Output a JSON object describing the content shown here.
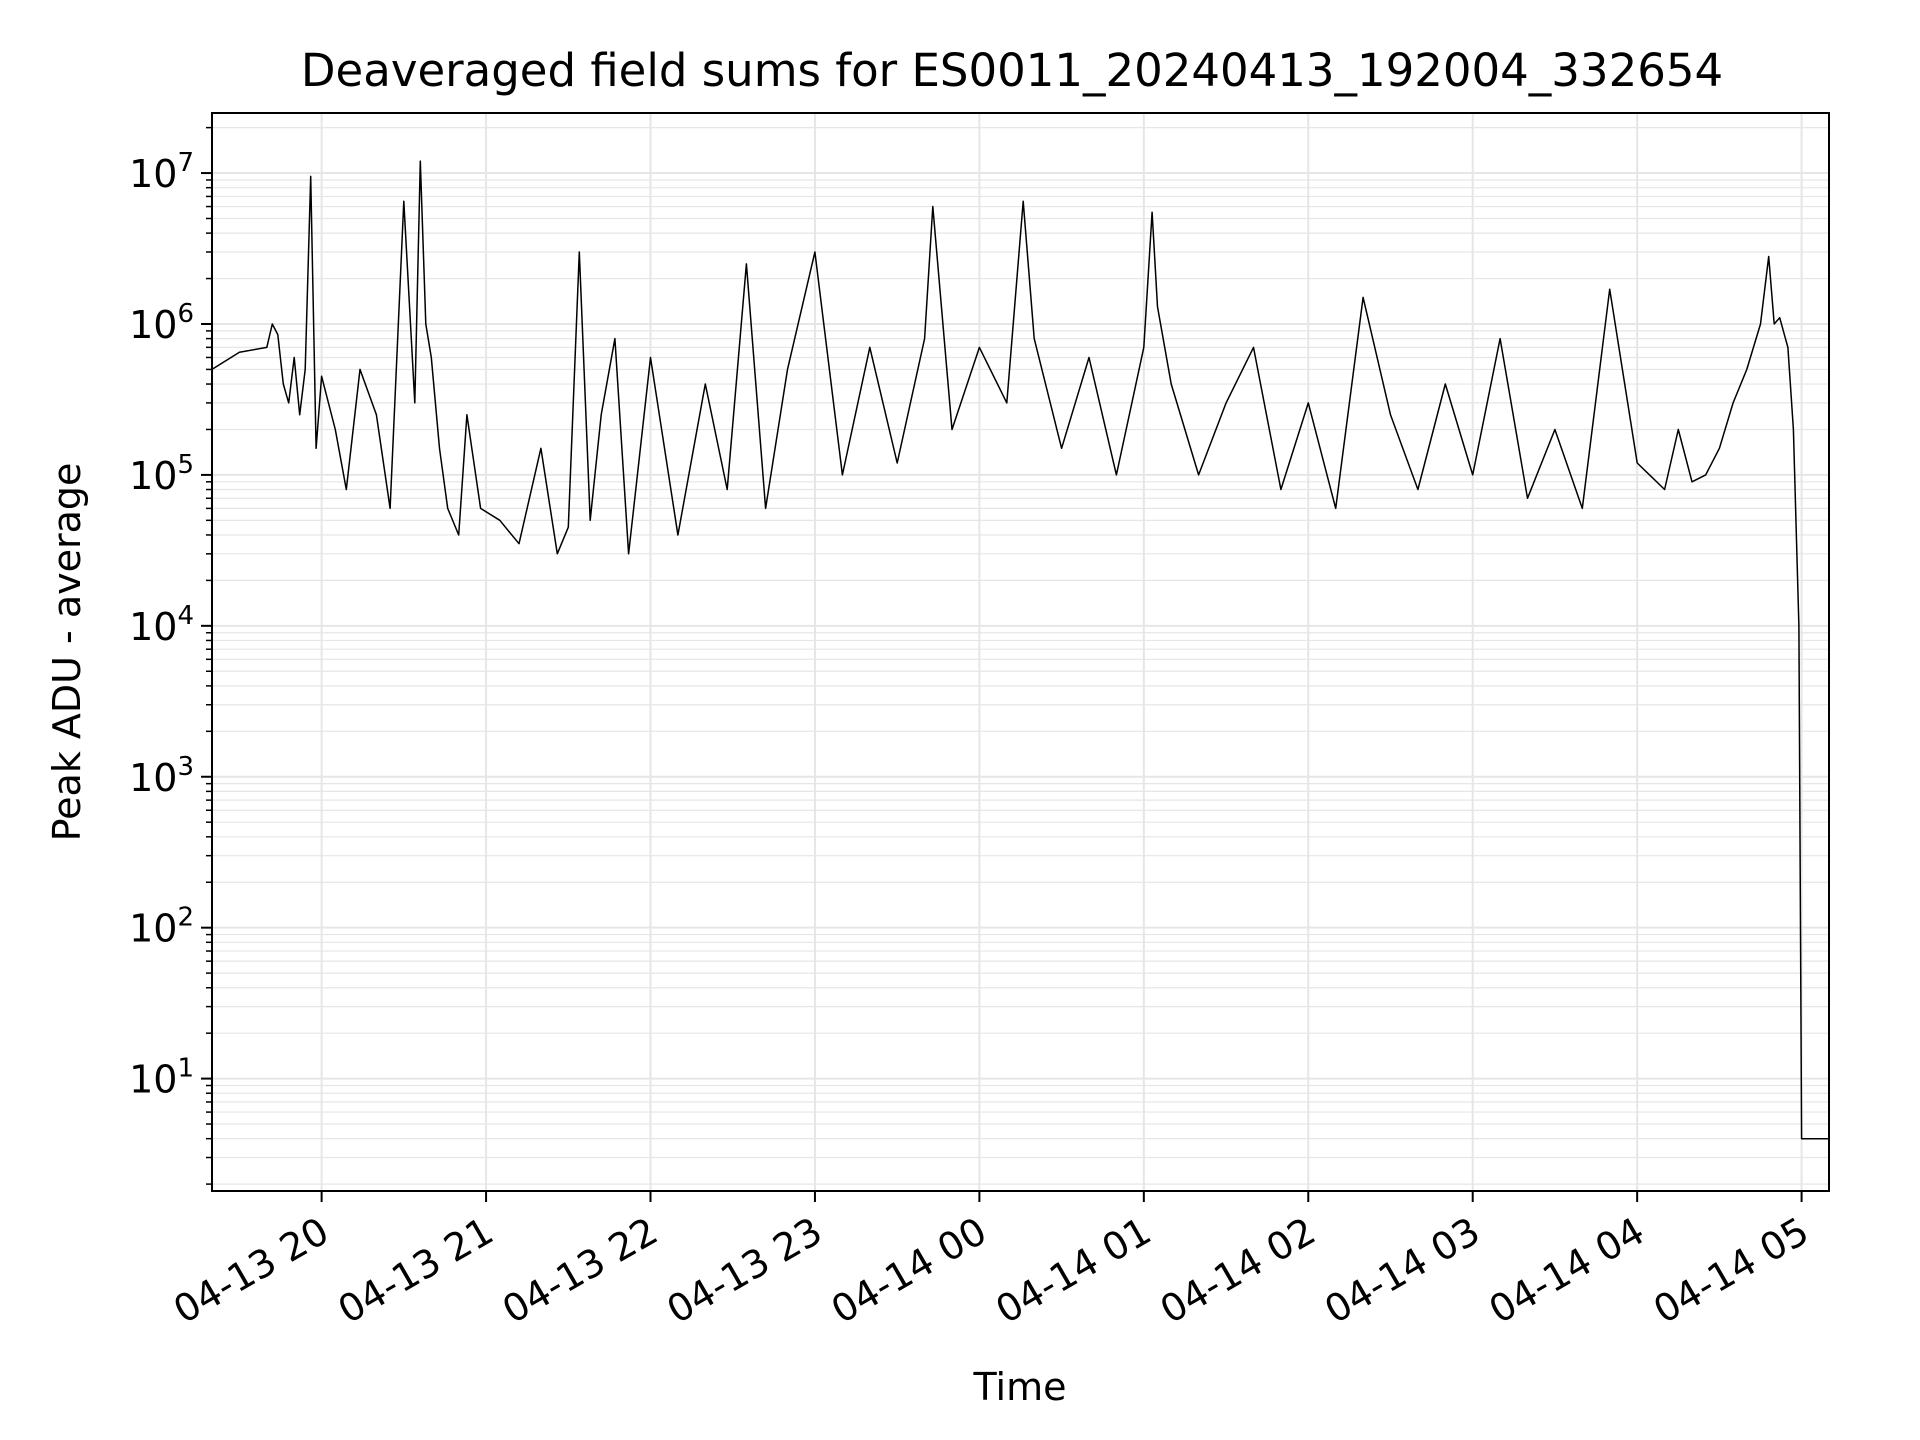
{
  "chart_data": {
    "type": "line",
    "title": "Deaveraged field sums for ES0011_20240413_192004_332654",
    "xlabel": "Time",
    "ylabel": "Peak ADU - average",
    "yscale": "log",
    "ylim": [
      1.8,
      25000000
    ],
    "xlim": [
      "2024-04-13 19:20",
      "2024-04-14 05:10"
    ],
    "grid": true,
    "line_color": "#000000",
    "grid_color": "#e6e6e6",
    "x_ticks": [
      {
        "value": "2024-04-13 20:00",
        "label": "04-13 20"
      },
      {
        "value": "2024-04-13 21:00",
        "label": "04-13 21"
      },
      {
        "value": "2024-04-13 22:00",
        "label": "04-13 22"
      },
      {
        "value": "2024-04-13 23:00",
        "label": "04-13 23"
      },
      {
        "value": "2024-04-14 00:00",
        "label": "04-14 00"
      },
      {
        "value": "2024-04-14 01:00",
        "label": "04-14 01"
      },
      {
        "value": "2024-04-14 02:00",
        "label": "04-14 02"
      },
      {
        "value": "2024-04-14 03:00",
        "label": "04-14 03"
      },
      {
        "value": "2024-04-14 04:00",
        "label": "04-14 04"
      },
      {
        "value": "2024-04-14 05:00",
        "label": "04-14 05"
      }
    ],
    "y_ticks": [
      {
        "value": 10,
        "base": "10",
        "exp": "1"
      },
      {
        "value": 100,
        "base": "10",
        "exp": "2"
      },
      {
        "value": 1000,
        "base": "10",
        "exp": "3"
      },
      {
        "value": 10000,
        "base": "10",
        "exp": "4"
      },
      {
        "value": 100000,
        "base": "10",
        "exp": "5"
      },
      {
        "value": 1000000,
        "base": "10",
        "exp": "6"
      },
      {
        "value": 10000000,
        "base": "10",
        "exp": "7"
      }
    ],
    "series": [
      {
        "x": [
          "2024-04-13 19:20",
          "2024-04-13 19:30",
          "2024-04-13 19:40",
          "2024-04-13 19:42",
          "2024-04-13 19:44",
          "2024-04-13 19:46",
          "2024-04-13 19:48",
          "2024-04-13 19:50",
          "2024-04-13 19:52",
          "2024-04-13 19:54",
          "2024-04-13 19:56",
          "2024-04-13 19:58",
          "2024-04-13 20:00",
          "2024-04-13 20:05",
          "2024-04-13 20:09",
          "2024-04-13 20:14",
          "2024-04-13 20:20",
          "2024-04-13 20:25",
          "2024-04-13 20:30",
          "2024-04-13 20:34",
          "2024-04-13 20:36",
          "2024-04-13 20:38",
          "2024-04-13 20:40",
          "2024-04-13 20:43",
          "2024-04-13 20:46",
          "2024-04-13 20:50",
          "2024-04-13 20:53",
          "2024-04-13 20:58",
          "2024-04-13 21:05",
          "2024-04-13 21:12",
          "2024-04-13 21:20",
          "2024-04-13 21:26",
          "2024-04-13 21:30",
          "2024-04-13 21:34",
          "2024-04-13 21:38",
          "2024-04-13 21:42",
          "2024-04-13 21:47",
          "2024-04-13 21:52",
          "2024-04-13 22:00",
          "2024-04-13 22:10",
          "2024-04-13 22:20",
          "2024-04-13 22:28",
          "2024-04-13 22:35",
          "2024-04-13 22:42",
          "2024-04-13 22:50",
          "2024-04-13 23:00",
          "2024-04-13 23:10",
          "2024-04-13 23:20",
          "2024-04-13 23:30",
          "2024-04-13 23:40",
          "2024-04-13 23:43",
          "2024-04-13 23:50",
          "2024-04-14 00:00",
          "2024-04-14 00:10",
          "2024-04-14 00:16",
          "2024-04-14 00:20",
          "2024-04-14 00:30",
          "2024-04-14 00:40",
          "2024-04-14 00:50",
          "2024-04-14 01:00",
          "2024-04-14 01:03",
          "2024-04-14 01:05",
          "2024-04-14 01:10",
          "2024-04-14 01:20",
          "2024-04-14 01:30",
          "2024-04-14 01:40",
          "2024-04-14 01:50",
          "2024-04-14 02:00",
          "2024-04-14 02:10",
          "2024-04-14 02:20",
          "2024-04-14 02:30",
          "2024-04-14 02:40",
          "2024-04-14 02:50",
          "2024-04-14 03:00",
          "2024-04-14 03:10",
          "2024-04-14 03:20",
          "2024-04-14 03:30",
          "2024-04-14 03:40",
          "2024-04-14 03:50",
          "2024-04-14 04:00",
          "2024-04-14 04:10",
          "2024-04-14 04:15",
          "2024-04-14 04:20",
          "2024-04-14 04:25",
          "2024-04-14 04:30",
          "2024-04-14 04:35",
          "2024-04-14 04:40",
          "2024-04-14 04:45",
          "2024-04-14 04:48",
          "2024-04-14 04:50",
          "2024-04-14 04:52",
          "2024-04-14 04:55",
          "2024-04-14 04:57",
          "2024-04-14 04:59",
          "2024-04-14 05:00",
          "2024-04-14 05:05",
          "2024-04-14 05:10"
        ],
        "y": [
          500000,
          650000,
          700000,
          1000000,
          850000,
          400000,
          300000,
          600000,
          250000,
          500000,
          9500000,
          150000,
          450000,
          200000,
          80000,
          500000,
          250000,
          60000,
          6500000,
          300000,
          12000000,
          1000000,
          600000,
          150000,
          60000,
          40000,
          250000,
          60000,
          50000,
          35000,
          150000,
          30000,
          45000,
          3000000,
          50000,
          250000,
          800000,
          30000,
          600000,
          40000,
          400000,
          80000,
          2500000,
          60000,
          500000,
          3000000,
          100000,
          700000,
          120000,
          800000,
          6000000,
          200000,
          700000,
          300000,
          6500000,
          800000,
          150000,
          600000,
          100000,
          700000,
          5500000,
          1300000,
          400000,
          100000,
          300000,
          700000,
          80000,
          300000,
          60000,
          1500000,
          250000,
          80000,
          400000,
          100000,
          800000,
          70000,
          200000,
          60000,
          1700000,
          120000,
          80000,
          200000,
          90000,
          100000,
          150000,
          300000,
          500000,
          1000000,
          2800000,
          1000000,
          1100000,
          700000,
          200000,
          10000,
          4,
          4,
          4
        ]
      }
    ]
  }
}
